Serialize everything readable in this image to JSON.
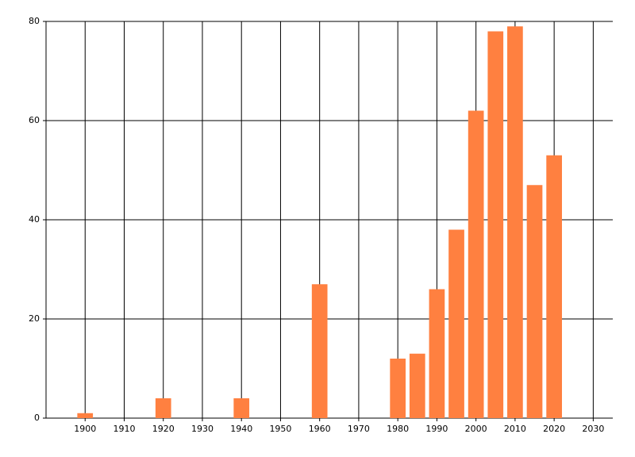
{
  "chart_data": {
    "type": "bar",
    "x": [
      1900,
      1920,
      1940,
      1960,
      1980,
      1985,
      1990,
      1995,
      2000,
      2005,
      2010,
      2015,
      2020
    ],
    "values": [
      1,
      4,
      4,
      27,
      12,
      13,
      26,
      38,
      62,
      78,
      79,
      47,
      53
    ],
    "color": "#ff8040",
    "xlim": [
      1890,
      2035
    ],
    "xticks": [
      1900,
      1910,
      1920,
      1930,
      1940,
      1950,
      1960,
      1970,
      1980,
      1990,
      2000,
      2010,
      2020,
      2030
    ],
    "ylim": [
      0,
      80
    ],
    "yticks": [
      0,
      20,
      40,
      60,
      80
    ],
    "grid": true
  }
}
